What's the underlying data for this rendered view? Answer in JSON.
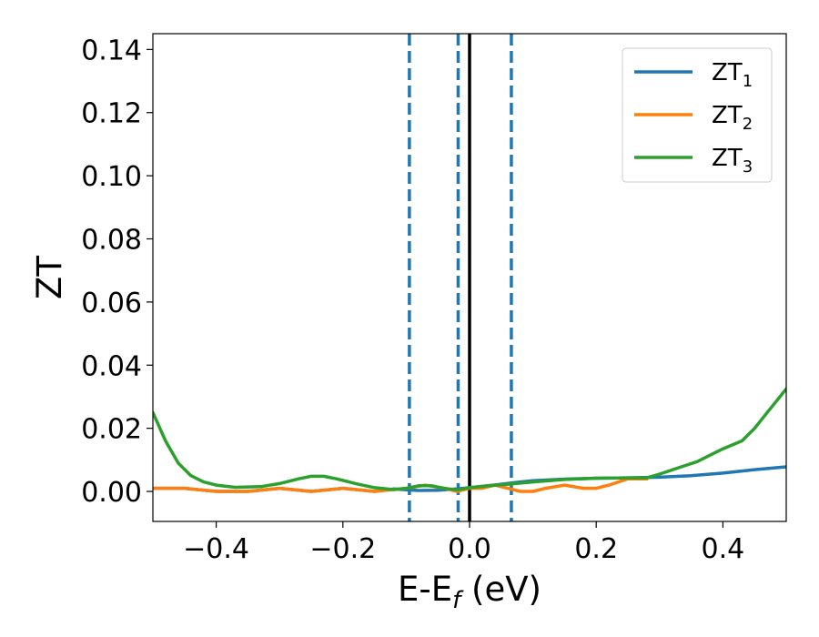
{
  "chart_data": {
    "type": "line",
    "xlabel": "E-E",
    "xlabel_sub": "f",
    "xlabel_unit": " (eV)",
    "ylabel": "ZT",
    "xlim": [
      -0.5,
      0.5
    ],
    "ylim": [
      -0.0095,
      0.145
    ],
    "xticks": [
      -0.4,
      -0.2,
      0.0,
      0.2,
      0.4
    ],
    "xtick_labels": [
      "−0.4",
      "−0.2",
      "0.0",
      "0.2",
      "0.4"
    ],
    "yticks": [
      0.0,
      0.02,
      0.04,
      0.06,
      0.08,
      0.1,
      0.12,
      0.14
    ],
    "ytick_labels": [
      "0.00",
      "0.02",
      "0.04",
      "0.06",
      "0.08",
      "0.10",
      "0.12",
      "0.14"
    ],
    "grid": false,
    "legend_position": "top-right",
    "vertical_lines": [
      {
        "x": -0.095,
        "style": "dashed",
        "color": "#1f77b4"
      },
      {
        "x": -0.018,
        "style": "dashed",
        "color": "#1f77b4"
      },
      {
        "x": 0.0,
        "style": "solid",
        "color": "#000000"
      },
      {
        "x": 0.066,
        "style": "dashed",
        "color": "#1f77b4"
      }
    ],
    "series": [
      {
        "name": "ZT",
        "name_sub": "1",
        "color": "#1f77b4",
        "x": [
          -0.5,
          -0.45,
          -0.4,
          -0.35,
          -0.3,
          -0.25,
          -0.2,
          -0.15,
          -0.12,
          -0.1,
          -0.08,
          -0.05,
          -0.02,
          0.0,
          0.02,
          0.05,
          0.08,
          0.1,
          0.15,
          0.2,
          0.25,
          0.3,
          0.35,
          0.4,
          0.45,
          0.5
        ],
        "values": [
          0.001,
          0.001,
          0.0,
          0.0,
          0.001,
          0.0,
          0.001,
          0.0,
          0.0008,
          0.0005,
          0.0003,
          0.0004,
          0.0008,
          0.0012,
          0.0016,
          0.0023,
          0.003,
          0.0034,
          0.0039,
          0.0042,
          0.0043,
          0.0045,
          0.005,
          0.0058,
          0.0069,
          0.0078
        ]
      },
      {
        "name": "ZT",
        "name_sub": "2",
        "color": "#ff7f0e",
        "x": [
          -0.5,
          -0.45,
          -0.4,
          -0.35,
          -0.3,
          -0.25,
          -0.2,
          -0.15,
          -0.1,
          -0.07,
          -0.04,
          -0.02,
          0.0,
          0.02,
          0.04,
          0.06,
          0.08,
          0.1,
          0.12,
          0.15,
          0.18,
          0.2,
          0.22,
          0.25,
          0.28
        ],
        "values": [
          0.001,
          0.001,
          0.0,
          0.0,
          0.001,
          0.0,
          0.001,
          0.0,
          0.001,
          0.002,
          0.001,
          0.0,
          0.001,
          0.001,
          0.002,
          0.001,
          0.0,
          0.0,
          0.001,
          0.002,
          0.001,
          0.001,
          0.002,
          0.004,
          0.004
        ]
      },
      {
        "name": "ZT",
        "name_sub": "3",
        "color": "#2ca02c",
        "x": [
          -0.5,
          -0.48,
          -0.46,
          -0.44,
          -0.42,
          -0.4,
          -0.37,
          -0.33,
          -0.3,
          -0.27,
          -0.25,
          -0.23,
          -0.21,
          -0.18,
          -0.15,
          -0.12,
          -0.1,
          -0.08,
          -0.06,
          -0.04,
          -0.02,
          0.0,
          0.03,
          0.06,
          0.1,
          0.15,
          0.2,
          0.25,
          0.28,
          0.3,
          0.33,
          0.36,
          0.38,
          0.4,
          0.43,
          0.45,
          0.47,
          0.5
        ],
        "values": [
          0.025,
          0.016,
          0.009,
          0.005,
          0.003,
          0.002,
          0.0013,
          0.0015,
          0.0025,
          0.004,
          0.0048,
          0.0048,
          0.004,
          0.0025,
          0.0012,
          0.0006,
          0.001,
          0.0018,
          0.0018,
          0.001,
          0.0005,
          0.0012,
          0.0018,
          0.0023,
          0.003,
          0.0038,
          0.0042,
          0.0043,
          0.0043,
          0.0055,
          0.0075,
          0.0095,
          0.0115,
          0.0135,
          0.016,
          0.02,
          0.025,
          0.0325
        ]
      }
    ]
  }
}
